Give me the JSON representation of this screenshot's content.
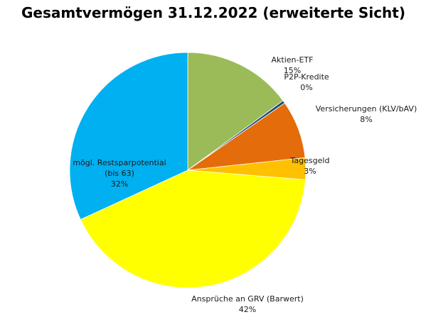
{
  "chart_data": {
    "type": "pie",
    "title": "Gesamtvermögen 31.12.2022 (erweiterte Sicht)",
    "slices": [
      {
        "label": "Aktien-ETF",
        "percent_label": "15%",
        "value": 15,
        "color": "#9bbb59"
      },
      {
        "label": "P2P-Kredite",
        "percent_label": "0%",
        "value": 0.4,
        "color": "#1f4e79"
      },
      {
        "label": "Versicherungen (KLV/bAV)",
        "percent_label": "8%",
        "value": 8,
        "color": "#e46c0a"
      },
      {
        "label": "Tagesgeld",
        "percent_label": "3%",
        "value": 3,
        "color": "#ffc000"
      },
      {
        "label": "Ansprüche an GRV (Barwert)",
        "percent_label": "42%",
        "value": 42,
        "color": "#ffff00"
      },
      {
        "label": "mögl. Restsparpotential (bis 63)",
        "label_lines": [
          "mögl. Restsparpotential",
          "(bis 63)"
        ],
        "percent_label": "32%",
        "value": 32,
        "color": "#00b0f0"
      }
    ],
    "legend": "none"
  }
}
